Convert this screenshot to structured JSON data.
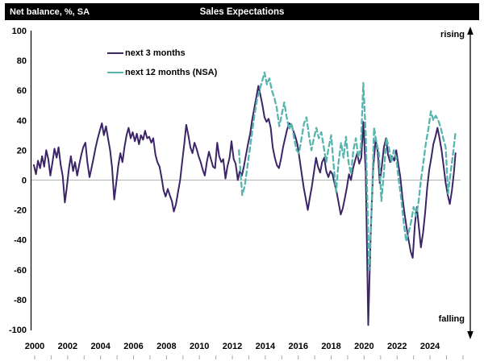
{
  "header": {
    "left_label": "Net balance, %, SA",
    "title": "Sales Expectations"
  },
  "annotations": {
    "rising": "rising",
    "falling": "falling"
  },
  "legend": {
    "items": [
      {
        "label": "next 3 months",
        "color": "#3b2468",
        "dashed": false
      },
      {
        "label": "next 12 months (NSA)",
        "color": "#56b6ad",
        "dashed": true
      }
    ]
  },
  "chart_data": {
    "type": "line",
    "title": "Sales Expectations",
    "ylabel": "Net balance, %, SA",
    "ylim": [
      -100,
      100
    ],
    "yticks": [
      100,
      80,
      60,
      40,
      20,
      0,
      -20,
      -40,
      -60,
      -80,
      -100
    ],
    "xticks": [
      2000,
      2002,
      2004,
      2006,
      2008,
      2010,
      2012,
      2014,
      2016,
      2018,
      2020,
      2022,
      2024
    ],
    "xlim": [
      1999.7,
      2026.2
    ],
    "grid": "zero line only",
    "legend_position": "inside top-left",
    "series": [
      {
        "name": "next 3 months",
        "color": "#3b2468",
        "dashed": false,
        "points": [
          [
            1999.95,
            10
          ],
          [
            2000.08,
            4
          ],
          [
            2000.2,
            13
          ],
          [
            2000.33,
            8
          ],
          [
            2000.45,
            16
          ],
          [
            2000.58,
            9
          ],
          [
            2000.7,
            20
          ],
          [
            2000.83,
            14
          ],
          [
            2000.95,
            3
          ],
          [
            2001.08,
            12
          ],
          [
            2001.2,
            21
          ],
          [
            2001.33,
            15
          ],
          [
            2001.45,
            22
          ],
          [
            2001.58,
            10
          ],
          [
            2001.7,
            3
          ],
          [
            2001.83,
            -15
          ],
          [
            2001.95,
            -5
          ],
          [
            2002.08,
            8
          ],
          [
            2002.2,
            16
          ],
          [
            2002.33,
            6
          ],
          [
            2002.45,
            12
          ],
          [
            2002.58,
            3
          ],
          [
            2002.7,
            10
          ],
          [
            2002.83,
            17
          ],
          [
            2002.95,
            22
          ],
          [
            2003.08,
            25
          ],
          [
            2003.2,
            12
          ],
          [
            2003.33,
            2
          ],
          [
            2003.45,
            8
          ],
          [
            2003.58,
            15
          ],
          [
            2003.7,
            22
          ],
          [
            2003.83,
            28
          ],
          [
            2003.95,
            33
          ],
          [
            2004.08,
            38
          ],
          [
            2004.2,
            30
          ],
          [
            2004.33,
            36
          ],
          [
            2004.45,
            28
          ],
          [
            2004.58,
            20
          ],
          [
            2004.7,
            8
          ],
          [
            2004.83,
            -13
          ],
          [
            2004.95,
            -2
          ],
          [
            2005.08,
            10
          ],
          [
            2005.2,
            18
          ],
          [
            2005.33,
            12
          ],
          [
            2005.45,
            22
          ],
          [
            2005.58,
            30
          ],
          [
            2005.7,
            35
          ],
          [
            2005.83,
            28
          ],
          [
            2005.95,
            32
          ],
          [
            2006.08,
            26
          ],
          [
            2006.2,
            31
          ],
          [
            2006.33,
            24
          ],
          [
            2006.45,
            30
          ],
          [
            2006.58,
            27
          ],
          [
            2006.7,
            33
          ],
          [
            2006.83,
            28
          ],
          [
            2006.95,
            29
          ],
          [
            2007.08,
            25
          ],
          [
            2007.2,
            28
          ],
          [
            2007.33,
            17
          ],
          [
            2007.45,
            12
          ],
          [
            2007.58,
            9
          ],
          [
            2007.7,
            2
          ],
          [
            2007.83,
            -7
          ],
          [
            2007.95,
            -11
          ],
          [
            2008.08,
            -6
          ],
          [
            2008.2,
            -10
          ],
          [
            2008.33,
            -14
          ],
          [
            2008.45,
            -21
          ],
          [
            2008.58,
            -16
          ],
          [
            2008.7,
            -8
          ],
          [
            2008.83,
            0
          ],
          [
            2008.95,
            12
          ],
          [
            2009.08,
            24
          ],
          [
            2009.2,
            37
          ],
          [
            2009.33,
            30
          ],
          [
            2009.45,
            22
          ],
          [
            2009.58,
            18
          ],
          [
            2009.7,
            25
          ],
          [
            2009.83,
            21
          ],
          [
            2009.95,
            16
          ],
          [
            2010.08,
            12
          ],
          [
            2010.2,
            7
          ],
          [
            2010.33,
            3
          ],
          [
            2010.45,
            12
          ],
          [
            2010.58,
            19
          ],
          [
            2010.7,
            14
          ],
          [
            2010.83,
            9
          ],
          [
            2010.95,
            8
          ],
          [
            2011.08,
            25
          ],
          [
            2011.2,
            16
          ],
          [
            2011.33,
            12
          ],
          [
            2011.45,
            14
          ],
          [
            2011.58,
            1
          ],
          [
            2011.7,
            9
          ],
          [
            2011.83,
            15
          ],
          [
            2011.95,
            26
          ],
          [
            2012.08,
            14
          ],
          [
            2012.2,
            11
          ],
          [
            2012.33,
            0
          ],
          [
            2012.45,
            6
          ],
          [
            2012.58,
            3
          ],
          [
            2012.7,
            9
          ],
          [
            2012.83,
            17
          ],
          [
            2012.95,
            24
          ],
          [
            2013.08,
            31
          ],
          [
            2013.2,
            40
          ],
          [
            2013.33,
            48
          ],
          [
            2013.45,
            55
          ],
          [
            2013.58,
            63
          ],
          [
            2013.7,
            57
          ],
          [
            2013.83,
            50
          ],
          [
            2013.95,
            42
          ],
          [
            2014.08,
            39
          ],
          [
            2014.2,
            41
          ],
          [
            2014.33,
            35
          ],
          [
            2014.45,
            22
          ],
          [
            2014.58,
            15
          ],
          [
            2014.7,
            10
          ],
          [
            2014.83,
            8
          ],
          [
            2014.95,
            14
          ],
          [
            2015.08,
            22
          ],
          [
            2015.2,
            28
          ],
          [
            2015.33,
            34
          ],
          [
            2015.45,
            38
          ],
          [
            2015.58,
            37
          ],
          [
            2015.7,
            33
          ],
          [
            2015.83,
            29
          ],
          [
            2015.95,
            24
          ],
          [
            2016.08,
            14
          ],
          [
            2016.2,
            5
          ],
          [
            2016.33,
            -5
          ],
          [
            2016.45,
            -12
          ],
          [
            2016.58,
            -20
          ],
          [
            2016.7,
            -12
          ],
          [
            2016.83,
            -4
          ],
          [
            2016.95,
            5
          ],
          [
            2017.08,
            15
          ],
          [
            2017.2,
            9
          ],
          [
            2017.33,
            5
          ],
          [
            2017.45,
            12
          ],
          [
            2017.58,
            15
          ],
          [
            2017.7,
            6
          ],
          [
            2017.83,
            2
          ],
          [
            2017.95,
            6
          ],
          [
            2018.08,
            4
          ],
          [
            2018.2,
            -2
          ],
          [
            2018.33,
            -8
          ],
          [
            2018.45,
            -15
          ],
          [
            2018.58,
            -23
          ],
          [
            2018.7,
            -19
          ],
          [
            2018.83,
            -12
          ],
          [
            2018.95,
            -5
          ],
          [
            2019.08,
            4
          ],
          [
            2019.2,
            0
          ],
          [
            2019.33,
            8
          ],
          [
            2019.45,
            13
          ],
          [
            2019.58,
            18
          ],
          [
            2019.7,
            11
          ],
          [
            2019.83,
            15
          ],
          [
            2019.95,
            39
          ],
          [
            2020.1,
            5
          ],
          [
            2020.25,
            -97
          ],
          [
            2020.4,
            -35
          ],
          [
            2020.55,
            8
          ],
          [
            2020.7,
            27
          ],
          [
            2020.83,
            19
          ],
          [
            2020.95,
            -2
          ],
          [
            2021.08,
            10
          ],
          [
            2021.2,
            22
          ],
          [
            2021.33,
            28
          ],
          [
            2021.45,
            17
          ],
          [
            2021.58,
            12
          ],
          [
            2021.7,
            16
          ],
          [
            2021.83,
            13
          ],
          [
            2021.95,
            20
          ],
          [
            2022.08,
            10
          ],
          [
            2022.2,
            2
          ],
          [
            2022.33,
            -12
          ],
          [
            2022.45,
            -22
          ],
          [
            2022.58,
            -32
          ],
          [
            2022.7,
            -40
          ],
          [
            2022.83,
            -48
          ],
          [
            2022.95,
            -52
          ],
          [
            2023.08,
            -30
          ],
          [
            2023.2,
            -18
          ],
          [
            2023.33,
            -32
          ],
          [
            2023.45,
            -45
          ],
          [
            2023.58,
            -35
          ],
          [
            2023.7,
            -22
          ],
          [
            2023.83,
            -5
          ],
          [
            2023.95,
            7
          ],
          [
            2024.08,
            15
          ],
          [
            2024.2,
            24
          ],
          [
            2024.33,
            29
          ],
          [
            2024.45,
            35
          ],
          [
            2024.58,
            28
          ],
          [
            2024.7,
            20
          ],
          [
            2024.83,
            9
          ],
          [
            2024.95,
            -2
          ],
          [
            2025.08,
            -10
          ],
          [
            2025.2,
            -16
          ],
          [
            2025.33,
            -7
          ],
          [
            2025.45,
            5
          ],
          [
            2025.55,
            18
          ]
        ]
      },
      {
        "name": "next 12 months (NSA)",
        "color": "#56b6ad",
        "dashed": true,
        "points": [
          [
            2012.4,
            20
          ],
          [
            2012.5,
            4
          ],
          [
            2012.6,
            -10
          ],
          [
            2012.75,
            -4
          ],
          [
            2012.9,
            8
          ],
          [
            2013.05,
            20
          ],
          [
            2013.2,
            32
          ],
          [
            2013.35,
            44
          ],
          [
            2013.5,
            54
          ],
          [
            2013.65,
            60
          ],
          [
            2013.8,
            66
          ],
          [
            2013.95,
            72
          ],
          [
            2014.1,
            64
          ],
          [
            2014.25,
            68
          ],
          [
            2014.4,
            60
          ],
          [
            2014.55,
            55
          ],
          [
            2014.7,
            48
          ],
          [
            2014.85,
            36
          ],
          [
            2015.0,
            44
          ],
          [
            2015.15,
            52
          ],
          [
            2015.3,
            42
          ],
          [
            2015.45,
            34
          ],
          [
            2015.6,
            38
          ],
          [
            2015.75,
            28
          ],
          [
            2015.9,
            20
          ],
          [
            2016.05,
            18
          ],
          [
            2016.2,
            28
          ],
          [
            2016.35,
            38
          ],
          [
            2016.5,
            42
          ],
          [
            2016.65,
            30
          ],
          [
            2016.8,
            20
          ],
          [
            2016.95,
            28
          ],
          [
            2017.1,
            35
          ],
          [
            2017.25,
            28
          ],
          [
            2017.4,
            32
          ],
          [
            2017.55,
            22
          ],
          [
            2017.7,
            12
          ],
          [
            2017.85,
            22
          ],
          [
            2018.0,
            30
          ],
          [
            2018.15,
            10
          ],
          [
            2018.3,
            -8
          ],
          [
            2018.45,
            12
          ],
          [
            2018.6,
            25
          ],
          [
            2018.75,
            15
          ],
          [
            2018.9,
            29
          ],
          [
            2019.05,
            12
          ],
          [
            2019.2,
            4
          ],
          [
            2019.35,
            20
          ],
          [
            2019.5,
            28
          ],
          [
            2019.65,
            15
          ],
          [
            2019.8,
            22
          ],
          [
            2019.95,
            65
          ],
          [
            2020.1,
            30
          ],
          [
            2020.3,
            -60
          ],
          [
            2020.45,
            -20
          ],
          [
            2020.6,
            35
          ],
          [
            2020.75,
            25
          ],
          [
            2020.9,
            18
          ],
          [
            2021.05,
            -14
          ],
          [
            2021.2,
            5
          ],
          [
            2021.35,
            28
          ],
          [
            2021.5,
            22
          ],
          [
            2021.65,
            12
          ],
          [
            2021.8,
            20
          ],
          [
            2021.95,
            15
          ],
          [
            2022.1,
            0
          ],
          [
            2022.25,
            -12
          ],
          [
            2022.4,
            -28
          ],
          [
            2022.55,
            -41
          ],
          [
            2022.7,
            -35
          ],
          [
            2022.85,
            -28
          ],
          [
            2023.0,
            -18
          ],
          [
            2023.15,
            -24
          ],
          [
            2023.3,
            -15
          ],
          [
            2023.45,
            0
          ],
          [
            2023.6,
            12
          ],
          [
            2023.75,
            25
          ],
          [
            2023.9,
            34
          ],
          [
            2024.05,
            46
          ],
          [
            2024.2,
            40
          ],
          [
            2024.35,
            43
          ],
          [
            2024.5,
            40
          ],
          [
            2024.65,
            35
          ],
          [
            2024.8,
            28
          ],
          [
            2024.95,
            22
          ],
          [
            2025.1,
            -9
          ],
          [
            2025.25,
            5
          ],
          [
            2025.4,
            18
          ],
          [
            2025.55,
            32
          ]
        ]
      }
    ]
  }
}
